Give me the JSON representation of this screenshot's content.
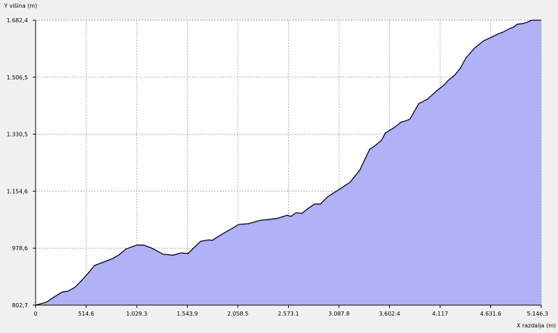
{
  "chart_data": {
    "type": "area",
    "title": "",
    "xlabel": "X razdalja (m)",
    "ylabel": "Y višina (m)",
    "xlim": [
      0,
      5146.3
    ],
    "ylim": [
      802.7,
      1682.4
    ],
    "grid": true,
    "x_ticks": [
      0,
      514.6,
      1029.3,
      1543.9,
      2058.5,
      2573.1,
      3087.8,
      3602.4,
      4117,
      4631.6,
      5146.3
    ],
    "x_tick_labels": [
      "0",
      "514.6",
      "1.029.3",
      "1.543.9",
      "2.058.5",
      "2.573.1",
      "3.087.8",
      "3.602.4",
      "4.117",
      "4.631.6",
      "5.146.3"
    ],
    "y_ticks": [
      802.7,
      978.6,
      1154.6,
      1330.5,
      1506.5,
      1682.4
    ],
    "y_tick_labels": [
      "802,7",
      "978,6",
      "1.154,6",
      "1.330,5",
      "1.506,5",
      "1.682,4"
    ],
    "fill_color": "#b1b1f5",
    "line_color": "#000000",
    "grid_color": "#a8a8a8",
    "x": [
      0,
      110,
      200,
      270,
      330,
      400,
      460,
      520,
      600,
      780,
      850,
      920,
      1030,
      1100,
      1180,
      1300,
      1400,
      1480,
      1550,
      1680,
      1760,
      1800,
      1850,
      1950,
      2070,
      2160,
      2200,
      2280,
      2320,
      2340,
      2450,
      2560,
      2600,
      2650,
      2710,
      2760,
      2840,
      2900,
      2970,
      3080,
      3140,
      3200,
      3300,
      3400,
      3460,
      3520,
      3560,
      3660,
      3720,
      3760,
      3810,
      3900,
      3990,
      4080,
      4160,
      4200,
      4260,
      4320,
      4380,
      4470,
      4560,
      4660,
      4720,
      4760,
      4820,
      4870,
      4900,
      4960,
      5000,
      5050,
      5100,
      5146.3
    ],
    "y": [
      802.7,
      812,
      830,
      843,
      846,
      858,
      876,
      896,
      925,
      946,
      958,
      976,
      988,
      988,
      979,
      960,
      957,
      964,
      962,
      1000,
      1004,
      1003,
      1013,
      1031,
      1052,
      1054,
      1057,
      1064,
      1066,
      1066,
      1070,
      1080,
      1077,
      1088,
      1086,
      1098,
      1115,
      1115,
      1137,
      1158,
      1170,
      1182,
      1220,
      1284,
      1296,
      1312,
      1334,
      1353,
      1368,
      1371,
      1377,
      1425,
      1439,
      1464,
      1483,
      1497,
      1511,
      1533,
      1566,
      1597,
      1619,
      1633,
      1642,
      1646,
      1656,
      1662,
      1670,
      1672,
      1676,
      1682.4,
      1682.4,
      1682.4
    ]
  }
}
